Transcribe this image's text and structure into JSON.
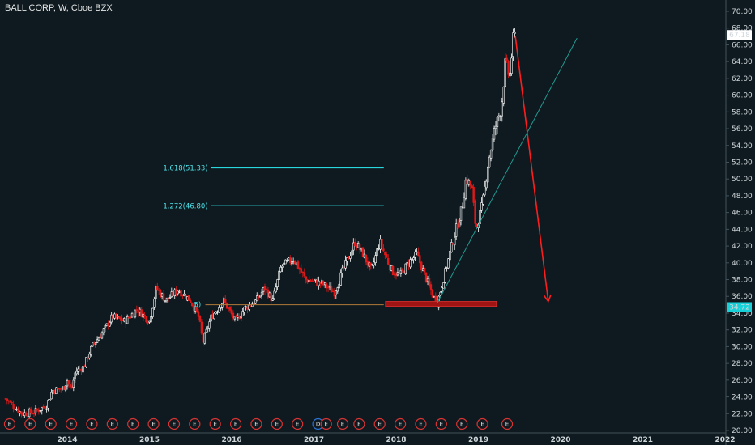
{
  "header": {
    "title": "BALL CORP, W, Cboe BZX"
  },
  "colors": {
    "background": "#0e1a1f",
    "up": "#ffffff",
    "down": "#e11919",
    "fib": "#28d7de",
    "support": "#18d1d8",
    "arrow": "#ff1e1e",
    "zone": "#a11414",
    "trend": "#1f9a91",
    "axis_text": "#cfd6da"
  },
  "chart_data": {
    "type": "candlestick",
    "title": "BALL CORP, W, Cboe BZX",
    "x_ticks": [
      "2014",
      "2015",
      "2016",
      "2017",
      "2018",
      "2019",
      "2020",
      "2021",
      "2022"
    ],
    "y_ticks": [
      "20.00",
      "22.00",
      "24.00",
      "26.00",
      "28.00",
      "30.00",
      "32.00",
      "34.00",
      "36.00",
      "38.00",
      "40.00",
      "42.00",
      "44.00",
      "46.00",
      "48.00",
      "50.00",
      "52.00",
      "54.00",
      "56.00",
      "58.00",
      "60.00",
      "62.00",
      "64.00",
      "66.00",
      "68.00",
      "70.00"
    ],
    "ylim": [
      20,
      71
    ],
    "xlim": [
      2013.2,
      2021.9
    ],
    "price_path": [
      [
        2013.25,
        23.8
      ],
      [
        2013.45,
        22.0
      ],
      [
        2013.6,
        22.2
      ],
      [
        2013.75,
        23.0
      ],
      [
        2013.82,
        24.8
      ],
      [
        2013.95,
        25.0
      ],
      [
        2014.0,
        26.0
      ],
      [
        2014.05,
        24.8
      ],
      [
        2014.1,
        27.0
      ],
      [
        2014.2,
        27.6
      ],
      [
        2014.3,
        30.0
      ],
      [
        2014.45,
        32.0
      ],
      [
        2014.55,
        33.6
      ],
      [
        2014.7,
        33.0
      ],
      [
        2014.85,
        34.5
      ],
      [
        2015.0,
        33.0
      ],
      [
        2015.08,
        37.0
      ],
      [
        2015.2,
        35.5
      ],
      [
        2015.35,
        36.8
      ],
      [
        2015.5,
        35.5
      ],
      [
        2015.6,
        33.5
      ],
      [
        2015.65,
        30.5
      ],
      [
        2015.75,
        33.5
      ],
      [
        2015.9,
        35.5
      ],
      [
        2016.05,
        33.0
      ],
      [
        2016.15,
        34.5
      ],
      [
        2016.3,
        35.5
      ],
      [
        2016.4,
        37.0
      ],
      [
        2016.5,
        35.5
      ],
      [
        2016.6,
        39.5
      ],
      [
        2016.75,
        40.5
      ],
      [
        2016.9,
        38.0
      ],
      [
        2017.1,
        37.5
      ],
      [
        2017.25,
        36.5
      ],
      [
        2017.35,
        39.0
      ],
      [
        2017.5,
        42.5
      ],
      [
        2017.6,
        41.0
      ],
      [
        2017.7,
        39.0
      ],
      [
        2017.8,
        42.5
      ],
      [
        2017.95,
        39.0
      ],
      [
        2018.05,
        38.5
      ],
      [
        2018.15,
        40.0
      ],
      [
        2018.25,
        41.0
      ],
      [
        2018.35,
        38.5
      ],
      [
        2018.45,
        36.0
      ],
      [
        2018.5,
        35.2
      ],
      [
        2018.6,
        39.0
      ],
      [
        2018.7,
        43.0
      ],
      [
        2018.8,
        46.5
      ],
      [
        2018.85,
        50.0
      ],
      [
        2018.92,
        49.0
      ],
      [
        2018.97,
        44.0
      ],
      [
        2019.05,
        47.0
      ],
      [
        2019.12,
        52.0
      ],
      [
        2019.2,
        56.0
      ],
      [
        2019.28,
        58.5
      ],
      [
        2019.33,
        64.0
      ],
      [
        2019.38,
        62.0
      ],
      [
        2019.42,
        66.5
      ],
      [
        2019.45,
        67.18
      ]
    ],
    "events": {
      "labels": [
        "E",
        "E",
        "E",
        "E",
        "E",
        "E",
        "E",
        "E",
        "E",
        "E",
        "E",
        "E",
        "E",
        "E",
        "E",
        "D",
        "E",
        "E",
        "E",
        "E",
        "E",
        "E",
        "E",
        "E",
        "E",
        "E"
      ],
      "x": [
        2013.3,
        2013.55,
        2013.8,
        2014.05,
        2014.3,
        2014.55,
        2014.8,
        2015.05,
        2015.3,
        2015.55,
        2015.8,
        2016.05,
        2016.3,
        2016.55,
        2016.8,
        2017.05,
        2017.15,
        2017.35,
        2017.55,
        2017.8,
        2018.05,
        2018.3,
        2018.55,
        2018.8,
        2019.05,
        2019.35
      ],
      "y_value": 21.0
    }
  },
  "annotations": {
    "fib_levels": [
      {
        "label": "1.618(51.33)",
        "value": 51.33
      },
      {
        "label": "1.272(46.80)",
        "value": 46.8
      }
    ],
    "fib_x_start": 2015.75,
    "fib_x_end": 2017.85,
    "orange_line": {
      "value": 35.0,
      "x_start": 2015.68,
      "x_end": 2017.85,
      "stub_label": "5)"
    },
    "support_value": 34.72,
    "current_price_label": "67.18",
    "current_price_value": 67.18,
    "support_label": "34.72",
    "zone": {
      "x_start": 2017.87,
      "x_end": 2019.22,
      "y_low": 34.8,
      "y_high": 35.4
    },
    "trendline": {
      "x1": 2018.5,
      "y1": 35.2,
      "x2": 2020.2,
      "y2": 66.8
    },
    "arrow": {
      "x1": 2019.45,
      "y1": 67.0,
      "x2": 2019.85,
      "y2": 35.4
    }
  }
}
